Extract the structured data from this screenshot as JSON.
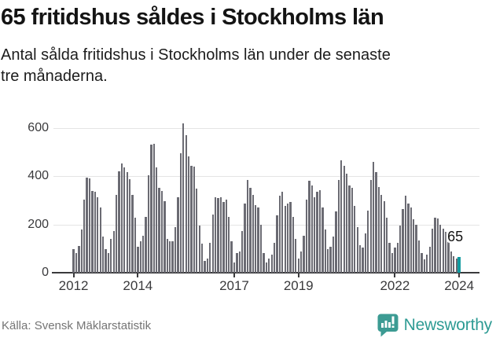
{
  "header": {
    "title": "65 fritidshus såldes i Stockholms län",
    "subtitle_lines": [
      "Antal sålda fritidshus i Stockholms län under de senaste",
      "tre månaderna."
    ]
  },
  "chart_data": {
    "type": "bar",
    "x_frequency": "monthly",
    "x_start": "2012-01",
    "x_end": "2024-01",
    "ylim": [
      0,
      650
    ],
    "yticks": [
      0,
      200,
      400,
      600
    ],
    "xticks": [
      2012,
      2014,
      2017,
      2019,
      2022,
      2024
    ],
    "grid": true,
    "values": [
      97,
      81,
      110,
      178,
      303,
      395,
      391,
      340,
      335,
      313,
      270,
      151,
      97,
      81,
      140,
      173,
      322,
      422,
      454,
      438,
      416,
      389,
      324,
      227,
      108,
      130,
      153,
      232,
      405,
      530,
      535,
      438,
      351,
      340,
      297,
      140,
      130,
      130,
      189,
      313,
      497,
      621,
      570,
      481,
      443,
      440,
      348,
      195,
      120,
      48,
      60,
      124,
      240,
      313,
      311,
      313,
      292,
      303,
      232,
      130,
      43,
      81,
      87,
      173,
      287,
      384,
      351,
      324,
      281,
      270,
      200,
      81,
      43,
      60,
      76,
      124,
      238,
      319,
      335,
      276,
      287,
      292,
      232,
      140,
      60,
      87,
      154,
      303,
      381,
      362,
      314,
      335,
      341,
      270,
      178,
      97,
      108,
      151,
      254,
      384,
      465,
      443,
      411,
      362,
      351,
      276,
      189,
      114,
      103,
      162,
      259,
      384,
      459,
      416,
      357,
      324,
      297,
      227,
      124,
      81,
      103,
      124,
      195,
      265,
      319,
      287,
      270,
      222,
      200,
      135,
      81,
      54,
      76,
      108,
      184,
      227,
      225,
      200,
      184,
      168,
      146,
      87,
      70,
      60,
      65
    ],
    "highlight_last_value": 65,
    "annotation": {
      "text": "65"
    },
    "colors": {
      "bar": "#6b6b73",
      "highlight": "#119ba0",
      "grid": "#e4e4e4",
      "axis": "#3a3a3c"
    }
  },
  "footer": {
    "source": "Källa: Svensk Mäklarstatistik",
    "logo_text": "Newsworthy",
    "logo_color": "#2e9b94"
  }
}
